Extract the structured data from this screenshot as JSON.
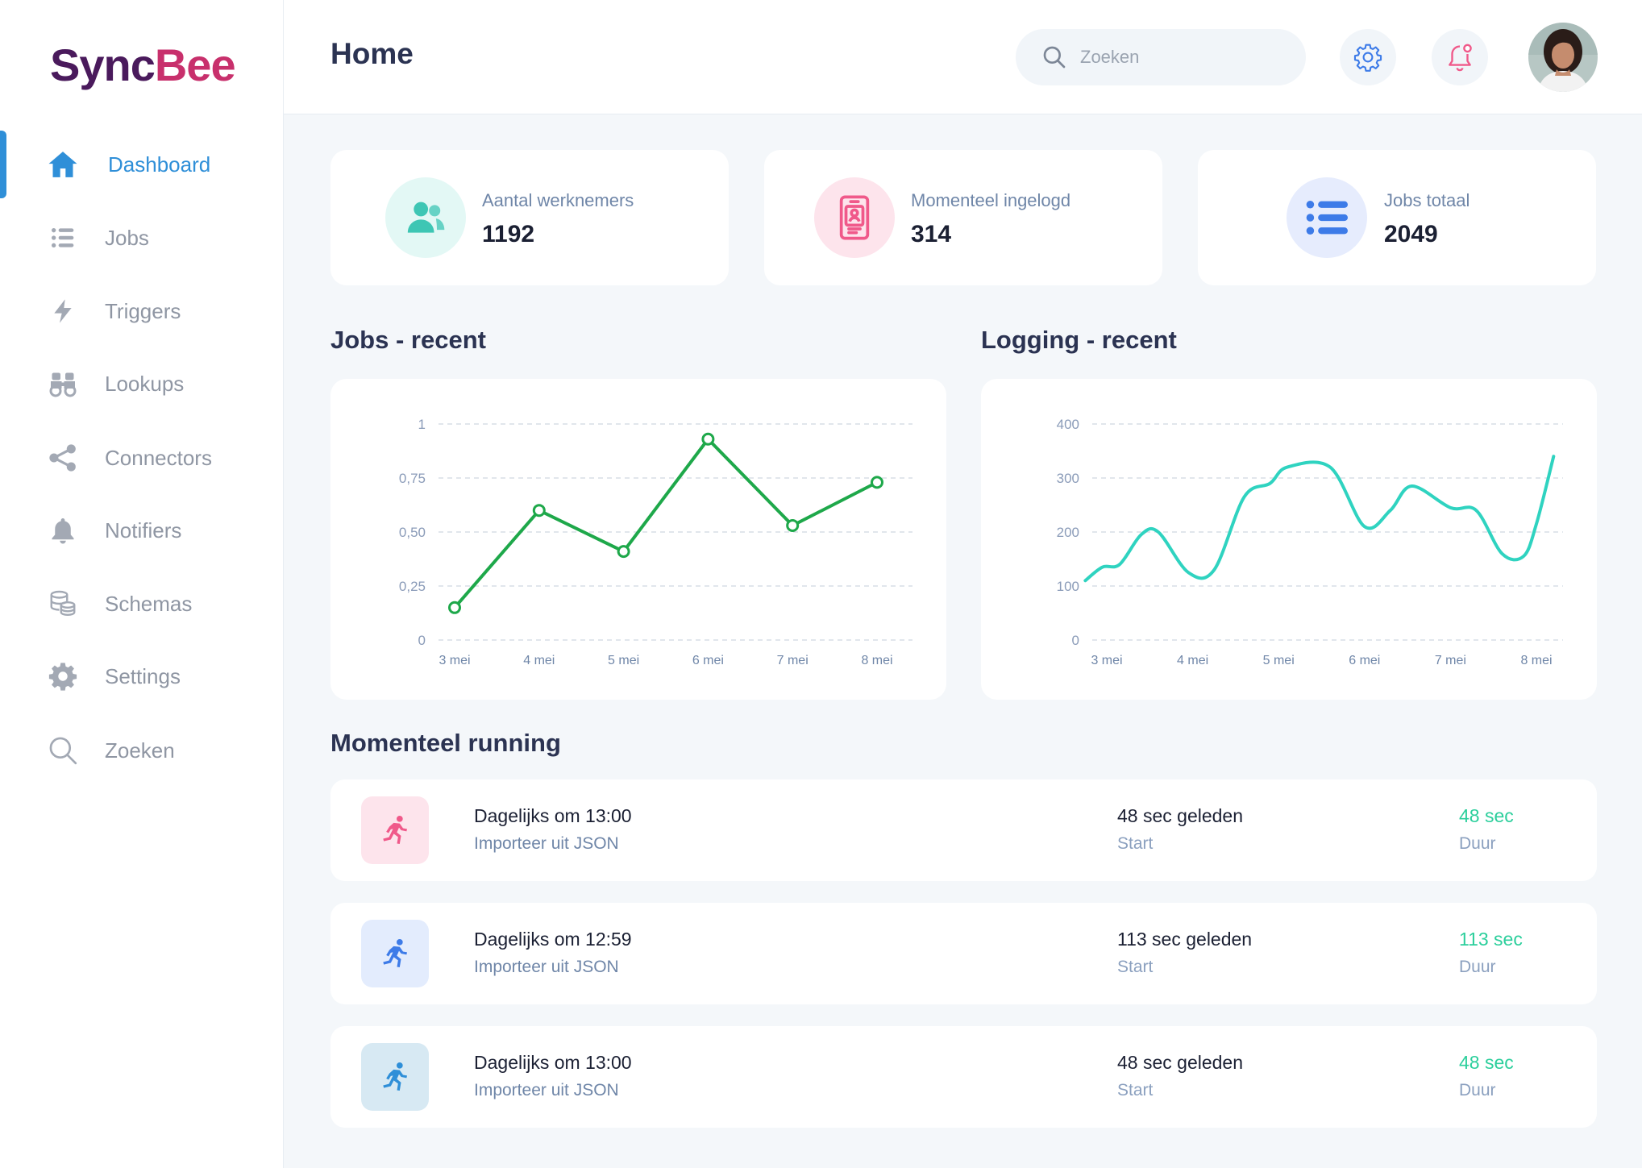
{
  "app": {
    "logo_part1": "Sync",
    "logo_part2": "Bee"
  },
  "sidebar": {
    "items": [
      {
        "label": "Dashboard",
        "icon": "home-icon",
        "active": true
      },
      {
        "label": "Jobs",
        "icon": "list-icon"
      },
      {
        "label": "Triggers",
        "icon": "lightning-icon"
      },
      {
        "label": "Lookups",
        "icon": "binoculars-icon"
      },
      {
        "label": "Connectors",
        "icon": "share-icon"
      },
      {
        "label": "Notifiers",
        "icon": "bell-icon"
      },
      {
        "label": "Schemas",
        "icon": "database-icon"
      },
      {
        "label": "Settings",
        "icon": "gear-icon"
      },
      {
        "label": "Zoeken",
        "icon": "search-icon"
      }
    ]
  },
  "header": {
    "title": "Home",
    "search_placeholder": "Zoeken"
  },
  "stats": [
    {
      "label": "Aantal werknemers",
      "value": "1192",
      "icon": "users-icon",
      "color": "#3ec6b4"
    },
    {
      "label": "Momenteel ingelogd",
      "value": "314",
      "icon": "mobile-id-icon",
      "color": "#f0598a"
    },
    {
      "label": "Jobs totaal",
      "value": "2049",
      "icon": "list-icon",
      "color": "#3d7be8"
    }
  ],
  "sections": {
    "jobs_recent": "Jobs - recent",
    "logging_recent": "Logging - recent",
    "running": "Momenteel running"
  },
  "chart_data": [
    {
      "type": "line",
      "categories": [
        "3 mei",
        "4 mei",
        "5 mei",
        "6 mei",
        "7 mei",
        "8 mei"
      ],
      "x": [
        0,
        1,
        2,
        3,
        4,
        5
      ],
      "series": [
        {
          "values": [
            0.15,
            0.6,
            0.41,
            0.93,
            0.53,
            0.73
          ],
          "color": "#1ea84a"
        }
      ],
      "ytick_labels": [
        "0",
        "0,25",
        "0,50",
        "0,75",
        "1"
      ],
      "ylim": [
        0,
        1
      ],
      "grid": true,
      "markers": true
    },
    {
      "type": "line",
      "categories": [
        "3 mei",
        "4 mei",
        "5 mei",
        "6 mei",
        "7 mei",
        "8 mei"
      ],
      "x": [
        -0.25,
        -0.05,
        0.15,
        0.4,
        0.6,
        0.95,
        1.25,
        1.6,
        1.9,
        2.1,
        2.6,
        3.0,
        3.3,
        3.55,
        4.0,
        4.3,
        4.6,
        4.85,
        5.0,
        5.2
      ],
      "series": [
        {
          "values": [
            110,
            135,
            140,
            195,
            200,
            125,
            130,
            265,
            290,
            320,
            320,
            210,
            240,
            285,
            245,
            240,
            160,
            155,
            215,
            340
          ],
          "color": "#2fd3c0"
        }
      ],
      "ytick_labels": [
        "0",
        "100",
        "200",
        "300",
        "400"
      ],
      "ylim": [
        0,
        400
      ],
      "grid": true,
      "markers": false
    }
  ],
  "running": [
    {
      "title": "Dagelijks om 13:00",
      "subtitle": "Importeer uit JSON",
      "start": "48 sec geleden",
      "start_label": "Start",
      "duration": "48 sec",
      "duration_label": "Duur",
      "icon_bg": "#fde4ec",
      "icon_color": "#f0598a"
    },
    {
      "title": "Dagelijks om 12:59",
      "subtitle": "Importeer uit JSON",
      "start": "113 sec geleden",
      "start_label": "Start",
      "duration": "113 sec",
      "duration_label": "Duur",
      "icon_bg": "#e3ecfd",
      "icon_color": "#3d7be8"
    },
    {
      "title": "Dagelijks om 13:00",
      "subtitle": "Importeer uit JSON",
      "start": "48 sec geleden",
      "start_label": "Start",
      "duration": "48 sec",
      "duration_label": "Duur",
      "icon_bg": "#d7e9f3",
      "icon_color": "#2f8fd8"
    }
  ]
}
